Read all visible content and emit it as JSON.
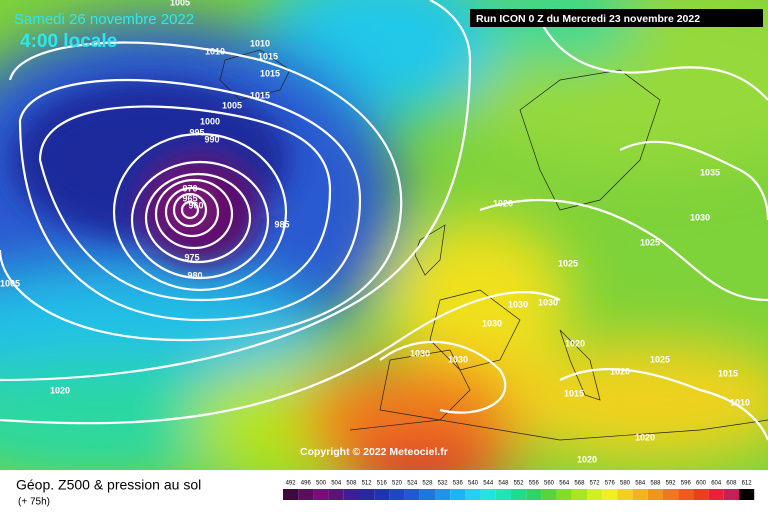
{
  "header": {
    "title": "Samedi 26 novembre 2022",
    "time": "4:00 locale",
    "run": "Run ICON 0 Z du Mercredi 23 novembre 2022"
  },
  "copyright": "Copyright © 2022 Meteociel.fr",
  "footer": {
    "title": "Géop. Z500 & pression au sol",
    "subtitle": "(+ 75h)"
  },
  "legend": {
    "values": [
      492,
      496,
      500,
      504,
      508,
      512,
      516,
      520,
      524,
      528,
      532,
      536,
      540,
      544,
      548,
      552,
      556,
      560,
      564,
      568,
      572,
      576,
      580,
      584,
      588,
      592,
      596,
      600,
      604,
      608,
      612
    ],
    "colors": [
      "#3c0a3c",
      "#5a0f5a",
      "#780f78",
      "#5a1478",
      "#3c1e96",
      "#2828a0",
      "#1e32b4",
      "#1e46c8",
      "#1e5ad2",
      "#1e78dc",
      "#1e96e6",
      "#1eb4f0",
      "#1ed2f0",
      "#1ee6dc",
      "#1ee6b4",
      "#1edc8c",
      "#32d264",
      "#5ad23c",
      "#82dc28",
      "#aae61e",
      "#d2f01e",
      "#f0f01e",
      "#f0d21e",
      "#f0b41e",
      "#f0961e",
      "#f0781e",
      "#f05a1e",
      "#f03c1e",
      "#f01e3c",
      "#c81e5a",
      "#000000"
    ]
  },
  "isobar_labels": [
    1005,
    1010,
    1010,
    1015,
    1015,
    1005,
    1015,
    1000,
    995,
    990,
    970,
    965,
    960,
    985,
    975,
    980,
    1005,
    1020,
    1020,
    1025,
    1025,
    1030,
    1035,
    1030,
    1030,
    1030,
    1020,
    1030,
    1030,
    1025,
    1020,
    1015,
    1015,
    1010,
    1020,
    1020
  ]
}
